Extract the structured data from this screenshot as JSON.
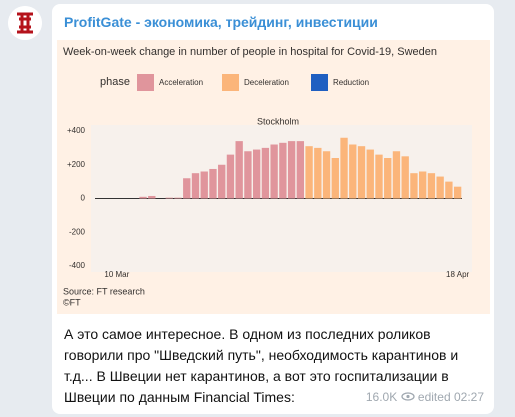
{
  "channel": "ProfitGate - экономика, трейдинг, инвестиции",
  "chart_data": {
    "type": "bar",
    "title": "Week-on-week change in number of people in hospital for Covid-19, Sweden",
    "legend_title": "phase",
    "panel": "Stockholm",
    "source": "Source: FT research",
    "credit": "©FT",
    "categories": [
      null,
      null,
      "10 Mar",
      null,
      null,
      null,
      null,
      null,
      null,
      null,
      null,
      null,
      null,
      null,
      null,
      null,
      null,
      null,
      null,
      null,
      null,
      null,
      null,
      null,
      null,
      null,
      null,
      null,
      null,
      null,
      null,
      null,
      null,
      null,
      null,
      null,
      null,
      null,
      null,
      null,
      null,
      "18 Apr"
    ],
    "series": [
      {
        "name": "Acceleration",
        "color": "#e0959c",
        "values": [
          0,
          0,
          0,
          0,
          0,
          10,
          15,
          0,
          5,
          5,
          120,
          150,
          160,
          175,
          200,
          260,
          340,
          280,
          290,
          300,
          320,
          330,
          340,
          340,
          null,
          null,
          null,
          null,
          null,
          null,
          null,
          null,
          null,
          null,
          null,
          null,
          null,
          null,
          null,
          null,
          null,
          null
        ]
      },
      {
        "name": "Deceleration",
        "color": "#fbb57a",
        "values": [
          null,
          null,
          null,
          null,
          null,
          null,
          null,
          null,
          null,
          null,
          null,
          null,
          null,
          null,
          null,
          null,
          null,
          null,
          null,
          null,
          null,
          null,
          null,
          null,
          310,
          300,
          280,
          240,
          360,
          320,
          310,
          290,
          260,
          240,
          280,
          250,
          150,
          160,
          150,
          130,
          100,
          70
        ]
      },
      {
        "name": "Reduction",
        "color": "#1f5fc1",
        "values": [
          null,
          null,
          null,
          null,
          null,
          null,
          null,
          null,
          null,
          null,
          null,
          null,
          null,
          null,
          null,
          null,
          null,
          null,
          null,
          null,
          null,
          null,
          null,
          null,
          null,
          null,
          null,
          null,
          null,
          null,
          null,
          null,
          null,
          null,
          null,
          null,
          null,
          null,
          null,
          null,
          null,
          null
        ]
      }
    ],
    "ylim": [
      -400,
      400
    ],
    "yticks": [
      {
        "value": 400,
        "label": "+400"
      },
      {
        "value": 200,
        "label": "+200"
      },
      0,
      -200,
      -400
    ],
    "grid": false
  },
  "message": "А это самое интересное. В одном из последних роликов говорили про \"Шведский путь\", необходимость карантинов и т.д... В Швеции нет карантинов, а вот это госпитализации в Швеции по данным Financial Times:",
  "views": "16.0K",
  "edited": "edited",
  "time": "02:27"
}
